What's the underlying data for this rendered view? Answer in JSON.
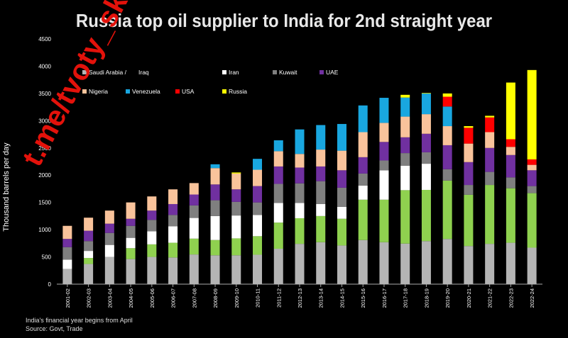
{
  "chart_data": {
    "type": "bar",
    "stacked": true,
    "title": "Russia top oil supplier to India for 2nd straight year",
    "ylabel": "Thousand barrels per day",
    "ylim": [
      0,
      4500
    ],
    "yticks": [
      0,
      500,
      1000,
      1500,
      2000,
      2500,
      3000,
      3500,
      4000,
      4500
    ],
    "grid": false,
    "legend_position": "top-left",
    "categories": [
      "2001-02",
      "2002-03",
      "2003-04",
      "2004-05",
      "2005-06",
      "2006-07",
      "2007-08",
      "2008-09",
      "2009-10",
      "2010-11",
      "2011-12",
      "2012-13",
      "2013-14",
      "2014-15",
      "2015-16",
      "2016-17",
      "2017-18",
      "2018-19",
      "2019-20",
      "2020-21",
      "2021-22",
      "2022-23",
      "2022-24"
    ],
    "series": [
      {
        "name": "Saudi Arabia",
        "color": "#b4b4b4",
        "values": [
          280,
          370,
          500,
          460,
          500,
          490,
          545,
          530,
          530,
          540,
          650,
          740,
          770,
          710,
          810,
          770,
          745,
          790,
          830,
          700,
          740,
          760,
          670
        ]
      },
      {
        "name": "Iraq",
        "color": "#8fd14f",
        "values": [
          0,
          110,
          0,
          200,
          230,
          270,
          290,
          280,
          310,
          340,
          480,
          470,
          480,
          490,
          740,
          780,
          980,
          940,
          1070,
          940,
          1080,
          1000,
          1000
        ]
      },
      {
        "name": "Iran",
        "color": "#ffffff",
        "values": [
          170,
          130,
          220,
          190,
          240,
          300,
          380,
          440,
          420,
          390,
          360,
          280,
          220,
          220,
          260,
          540,
          450,
          480,
          0,
          0,
          0,
          0,
          0
        ]
      },
      {
        "name": "Kuwait",
        "color": "#7f7f7f",
        "values": [
          230,
          180,
          220,
          220,
          210,
          210,
          230,
          290,
          250,
          230,
          350,
          360,
          420,
          350,
          220,
          180,
          230,
          210,
          210,
          180,
          240,
          200,
          130
        ]
      },
      {
        "name": "UAE",
        "color": "#7030a0",
        "values": [
          150,
          190,
          170,
          130,
          170,
          200,
          200,
          290,
          230,
          300,
          320,
          290,
          270,
          320,
          300,
          340,
          290,
          340,
          440,
          420,
          440,
          410,
          290
        ]
      },
      {
        "name": "Nigeria",
        "color": "#f9c39b",
        "values": [
          240,
          240,
          240,
          300,
          260,
          270,
          210,
          300,
          290,
          300,
          280,
          250,
          310,
          360,
          460,
          350,
          380,
          360,
          350,
          340,
          290,
          150,
          100
        ]
      },
      {
        "name": "Venezuela",
        "color": "#19a7e0",
        "values": [
          0,
          0,
          0,
          0,
          0,
          0,
          0,
          70,
          0,
          200,
          200,
          450,
          450,
          490,
          490,
          460,
          350,
          380,
          360,
          0,
          0,
          0,
          0
        ]
      },
      {
        "name": "USA",
        "color": "#ff0000",
        "values": [
          0,
          0,
          0,
          0,
          0,
          0,
          0,
          0,
          0,
          0,
          0,
          0,
          0,
          0,
          0,
          0,
          0,
          0,
          180,
          290,
          270,
          140,
          100
        ]
      },
      {
        "name": "Russia",
        "color": "#ffff00",
        "values": [
          0,
          0,
          0,
          0,
          0,
          0,
          0,
          0,
          20,
          0,
          0,
          0,
          0,
          0,
          0,
          0,
          50,
          10,
          60,
          30,
          30,
          1040,
          1640
        ]
      }
    ],
    "legend_rows": [
      [
        "Saudi Arabia",
        "Iraq",
        "Iran",
        "Kuwait",
        "UAE"
      ],
      [
        "Nigeria",
        "Venezuela",
        "USA",
        "Russia"
      ]
    ]
  },
  "footnote": [
    "India's financial year begins from April",
    "Source: Govt, Trade"
  ],
  "watermark": "t.me/tvoty_sk"
}
